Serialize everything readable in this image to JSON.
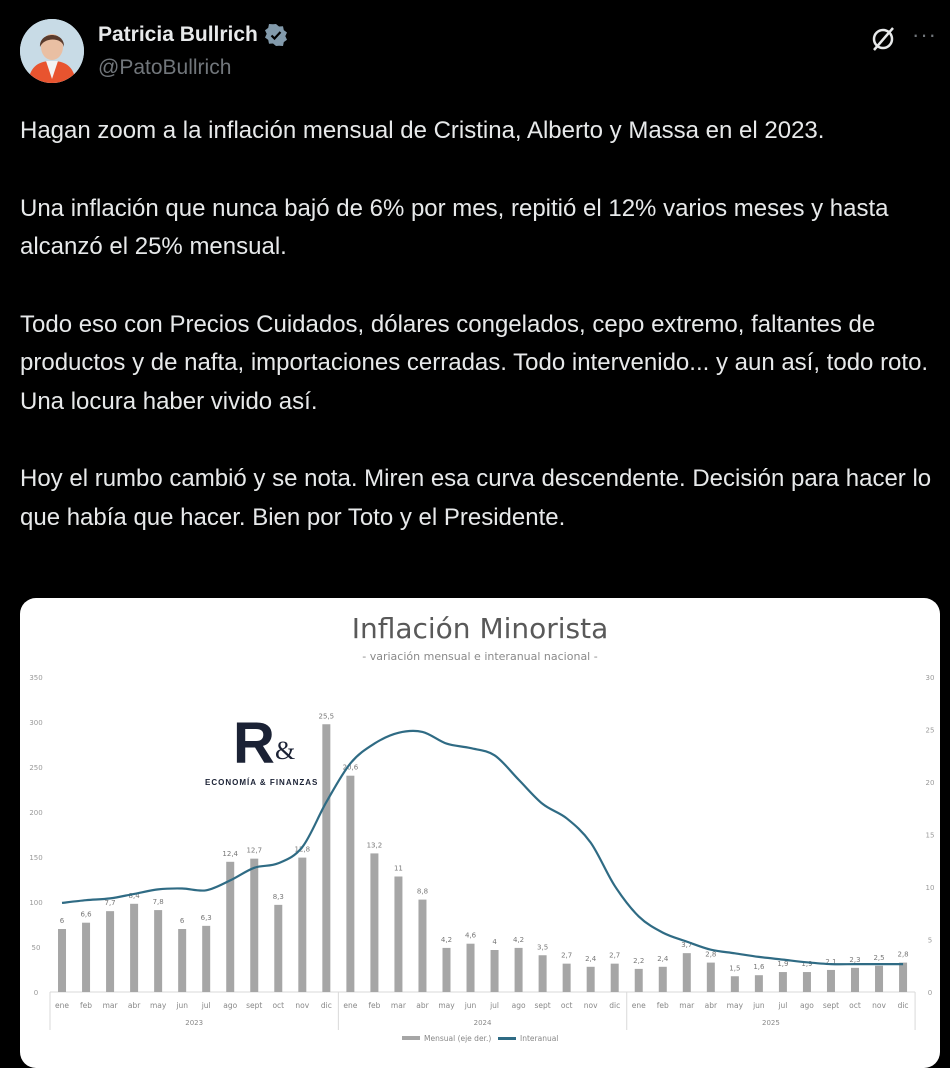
{
  "author": {
    "name": "Patricia Bullrich",
    "handle": "@PatoBullrich",
    "verified": true,
    "verified_color": "#829aab"
  },
  "header_icons": [
    "grok-icon",
    "more-icon"
  ],
  "more_label": "···",
  "tweet": {
    "paragraphs": [
      "Hagan zoom a la inflación mensual de Cristina, Alberto y Massa en el 2023.",
      "Una inflación que nunca bajó de 6% por mes, repitió el 12% varios meses y hasta alcanzó el 25% mensual.",
      "Todo eso con Precios Cuidados, dólares congelados, cepo extremo, faltantes de productos y de nafta, importaciones cerradas. Todo intervenido... y aun así, todo roto. Una locura haber vivido así.",
      "Hoy el rumbo cambió y se nota. Miren esa curva descendente. Decisión para hacer lo que había que hacer. Bien por Toto y el Presidente."
    ]
  },
  "logo": {
    "mark": "R",
    "amp": "&",
    "text": "ECONOMÍA & FINANZAS"
  },
  "chart_data": {
    "type": "bar+line",
    "title": "Inflación Minorista",
    "subtitle": "- variación mensual e interanual nacional -",
    "categories": [
      "ene",
      "feb",
      "mar",
      "abr",
      "may",
      "jun",
      "jul",
      "ago",
      "sept",
      "oct",
      "nov",
      "dic",
      "ene",
      "feb",
      "mar",
      "abr",
      "may",
      "jun",
      "jul",
      "ago",
      "sept",
      "oct",
      "nov",
      "dic",
      "ene",
      "feb",
      "mar",
      "abr",
      "may",
      "jun",
      "jul",
      "ago",
      "sept",
      "oct",
      "nov",
      "dic"
    ],
    "years": [
      "2023",
      "2024",
      "2025"
    ],
    "left_axis": {
      "ticks": [
        0,
        50,
        100,
        150,
        200,
        250,
        300,
        350
      ],
      "ylim": [
        0,
        350
      ]
    },
    "right_axis": {
      "ticks": [
        0,
        5,
        10,
        15,
        20,
        25,
        30
      ],
      "ylim": [
        0,
        30
      ]
    },
    "series": [
      {
        "name": "Mensual (eje der.)",
        "type": "bar",
        "axis": "right",
        "color": "#a6a6a6",
        "values": [
          6,
          6.6,
          7.7,
          8.4,
          7.8,
          6,
          6.3,
          12.4,
          12.7,
          8.3,
          12.8,
          25.5,
          20.6,
          13.2,
          11,
          8.8,
          4.2,
          4.6,
          4,
          4.2,
          3.5,
          2.7,
          2.4,
          2.7,
          2.2,
          2.4,
          3.7,
          2.8,
          1.5,
          1.6,
          1.9,
          1.9,
          2.1,
          2.3,
          2.5,
          2.8
        ],
        "labels": [
          "6",
          "6,6",
          "7,7",
          "8,4",
          "7,8",
          "6",
          "6,3",
          "12,4",
          "12,7",
          "8,3",
          "12,8",
          "25,5",
          "20,6",
          "13,2",
          "11",
          "8,8",
          "4,2",
          "4,6",
          "4",
          "4,2",
          "3,5",
          "2,7",
          "2,4",
          "2,7",
          "2,2",
          "2,4",
          "3,7",
          "2,8",
          "1,5",
          "1,6",
          "1,9",
          "1,9",
          "2,1",
          "2,3",
          "2,5",
          "2,8"
        ]
      },
      {
        "name": "Interanual",
        "type": "line",
        "axis": "left",
        "color": "#2f6b84",
        "values": [
          99,
          102,
          104,
          109,
          114,
          115,
          113,
          124,
          138,
          143,
          161,
          211,
          254,
          276,
          288,
          289,
          276,
          271,
          263,
          236,
          209,
          193,
          166,
          118,
          84,
          66,
          56,
          47,
          43,
          39,
          36,
          33,
          31,
          31,
          31,
          31
        ]
      }
    ],
    "grid": false,
    "legend": "bottom"
  }
}
